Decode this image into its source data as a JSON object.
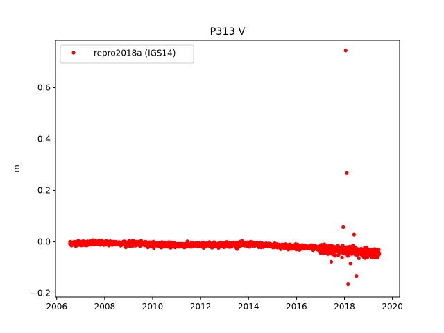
{
  "chart_data": {
    "type": "scatter",
    "title": "P313 V",
    "xlabel": "",
    "ylabel": "m",
    "xlim": [
      2005.95,
      2020.3
    ],
    "ylim": [
      -0.215,
      0.785
    ],
    "xticks": [
      2006,
      2008,
      2010,
      2012,
      2014,
      2016,
      2018,
      2020
    ],
    "xtick_labels": [
      "2006",
      "2008",
      "2010",
      "2012",
      "2014",
      "2016",
      "2018",
      "2020"
    ],
    "yticks": [
      -0.2,
      0.0,
      0.2,
      0.4,
      0.6
    ],
    "ytick_labels": [
      "−0.2",
      "0.0",
      "0.2",
      "0.4",
      "0.6"
    ],
    "grid": false,
    "legend_position": "upper-left",
    "series": [
      {
        "name": "repro2018a (IGS14)",
        "color": "#ff0000",
        "marker": "circle",
        "trend": {
          "x_start": 2006.55,
          "x_end": 2019.45,
          "anchors": [
            [
              2006.55,
              -0.006
            ],
            [
              2008.0,
              -0.004
            ],
            [
              2009.5,
              -0.008
            ],
            [
              2011.0,
              -0.013
            ],
            [
              2012.5,
              -0.012
            ],
            [
              2014.0,
              -0.01
            ],
            [
              2015.5,
              -0.017
            ],
            [
              2016.5,
              -0.022
            ],
            [
              2017.2,
              -0.03
            ],
            [
              2018.0,
              -0.034
            ],
            [
              2019.45,
              -0.045
            ]
          ],
          "scatter_std": 0.0045,
          "note_points_per_year": 150
        },
        "outliers": [
          {
            "x": 2018.05,
            "y": 0.745
          },
          {
            "x": 2018.1,
            "y": 0.268
          },
          {
            "x": 2017.95,
            "y": 0.057
          },
          {
            "x": 2018.4,
            "y": 0.028
          },
          {
            "x": 2018.35,
            "y": -0.015
          },
          {
            "x": 2017.45,
            "y": -0.078
          },
          {
            "x": 2018.25,
            "y": -0.085
          },
          {
            "x": 2018.5,
            "y": -0.133
          },
          {
            "x": 2018.15,
            "y": -0.165
          },
          {
            "x": 2017.6,
            "y": -0.055
          },
          {
            "x": 2018.6,
            "y": -0.065
          },
          {
            "x": 2017.9,
            "y": -0.062
          }
        ]
      }
    ]
  }
}
